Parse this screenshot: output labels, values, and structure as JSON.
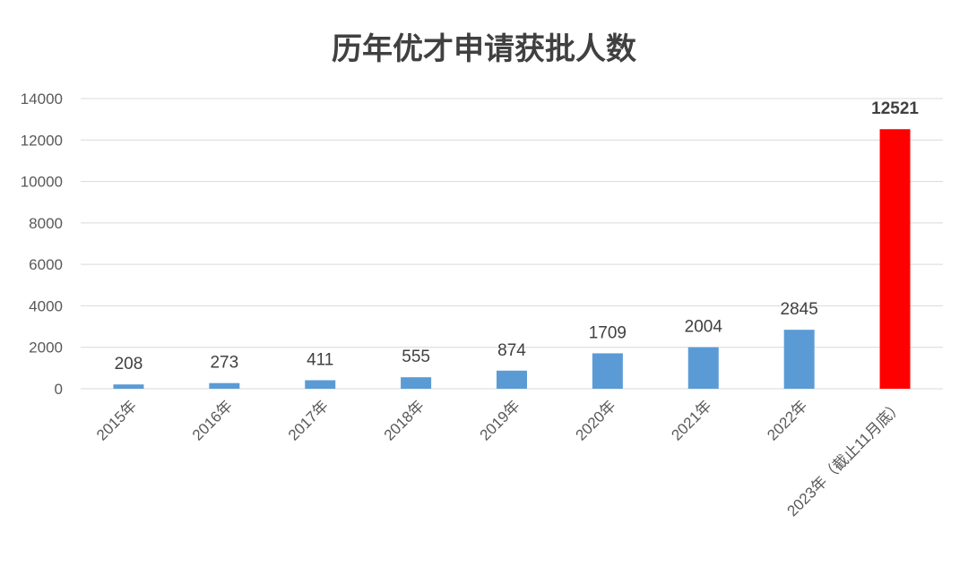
{
  "chart_data": {
    "type": "bar",
    "title": "历年优才申请获批人数",
    "categories": [
      "2015年",
      "2016年",
      "2017年",
      "2018年",
      "2019年",
      "2020年",
      "2021年",
      "2022年",
      "2023年（截止11月底）"
    ],
    "values": [
      208,
      273,
      411,
      555,
      874,
      1709,
      2004,
      2845,
      12521
    ],
    "data_labels": [
      "208",
      "273",
      "411",
      "555",
      "874",
      "1709",
      "2004",
      "2845",
      "12521"
    ],
    "yticks": [
      "0",
      "2000",
      "4000",
      "6000",
      "8000",
      "10000",
      "12000",
      "14000"
    ],
    "ylim": [
      0,
      14000
    ],
    "grid": true,
    "legend": "none",
    "colors": {
      "default": "#5b9bd5",
      "highlight": "#ff0000"
    },
    "highlight_index": 8
  }
}
